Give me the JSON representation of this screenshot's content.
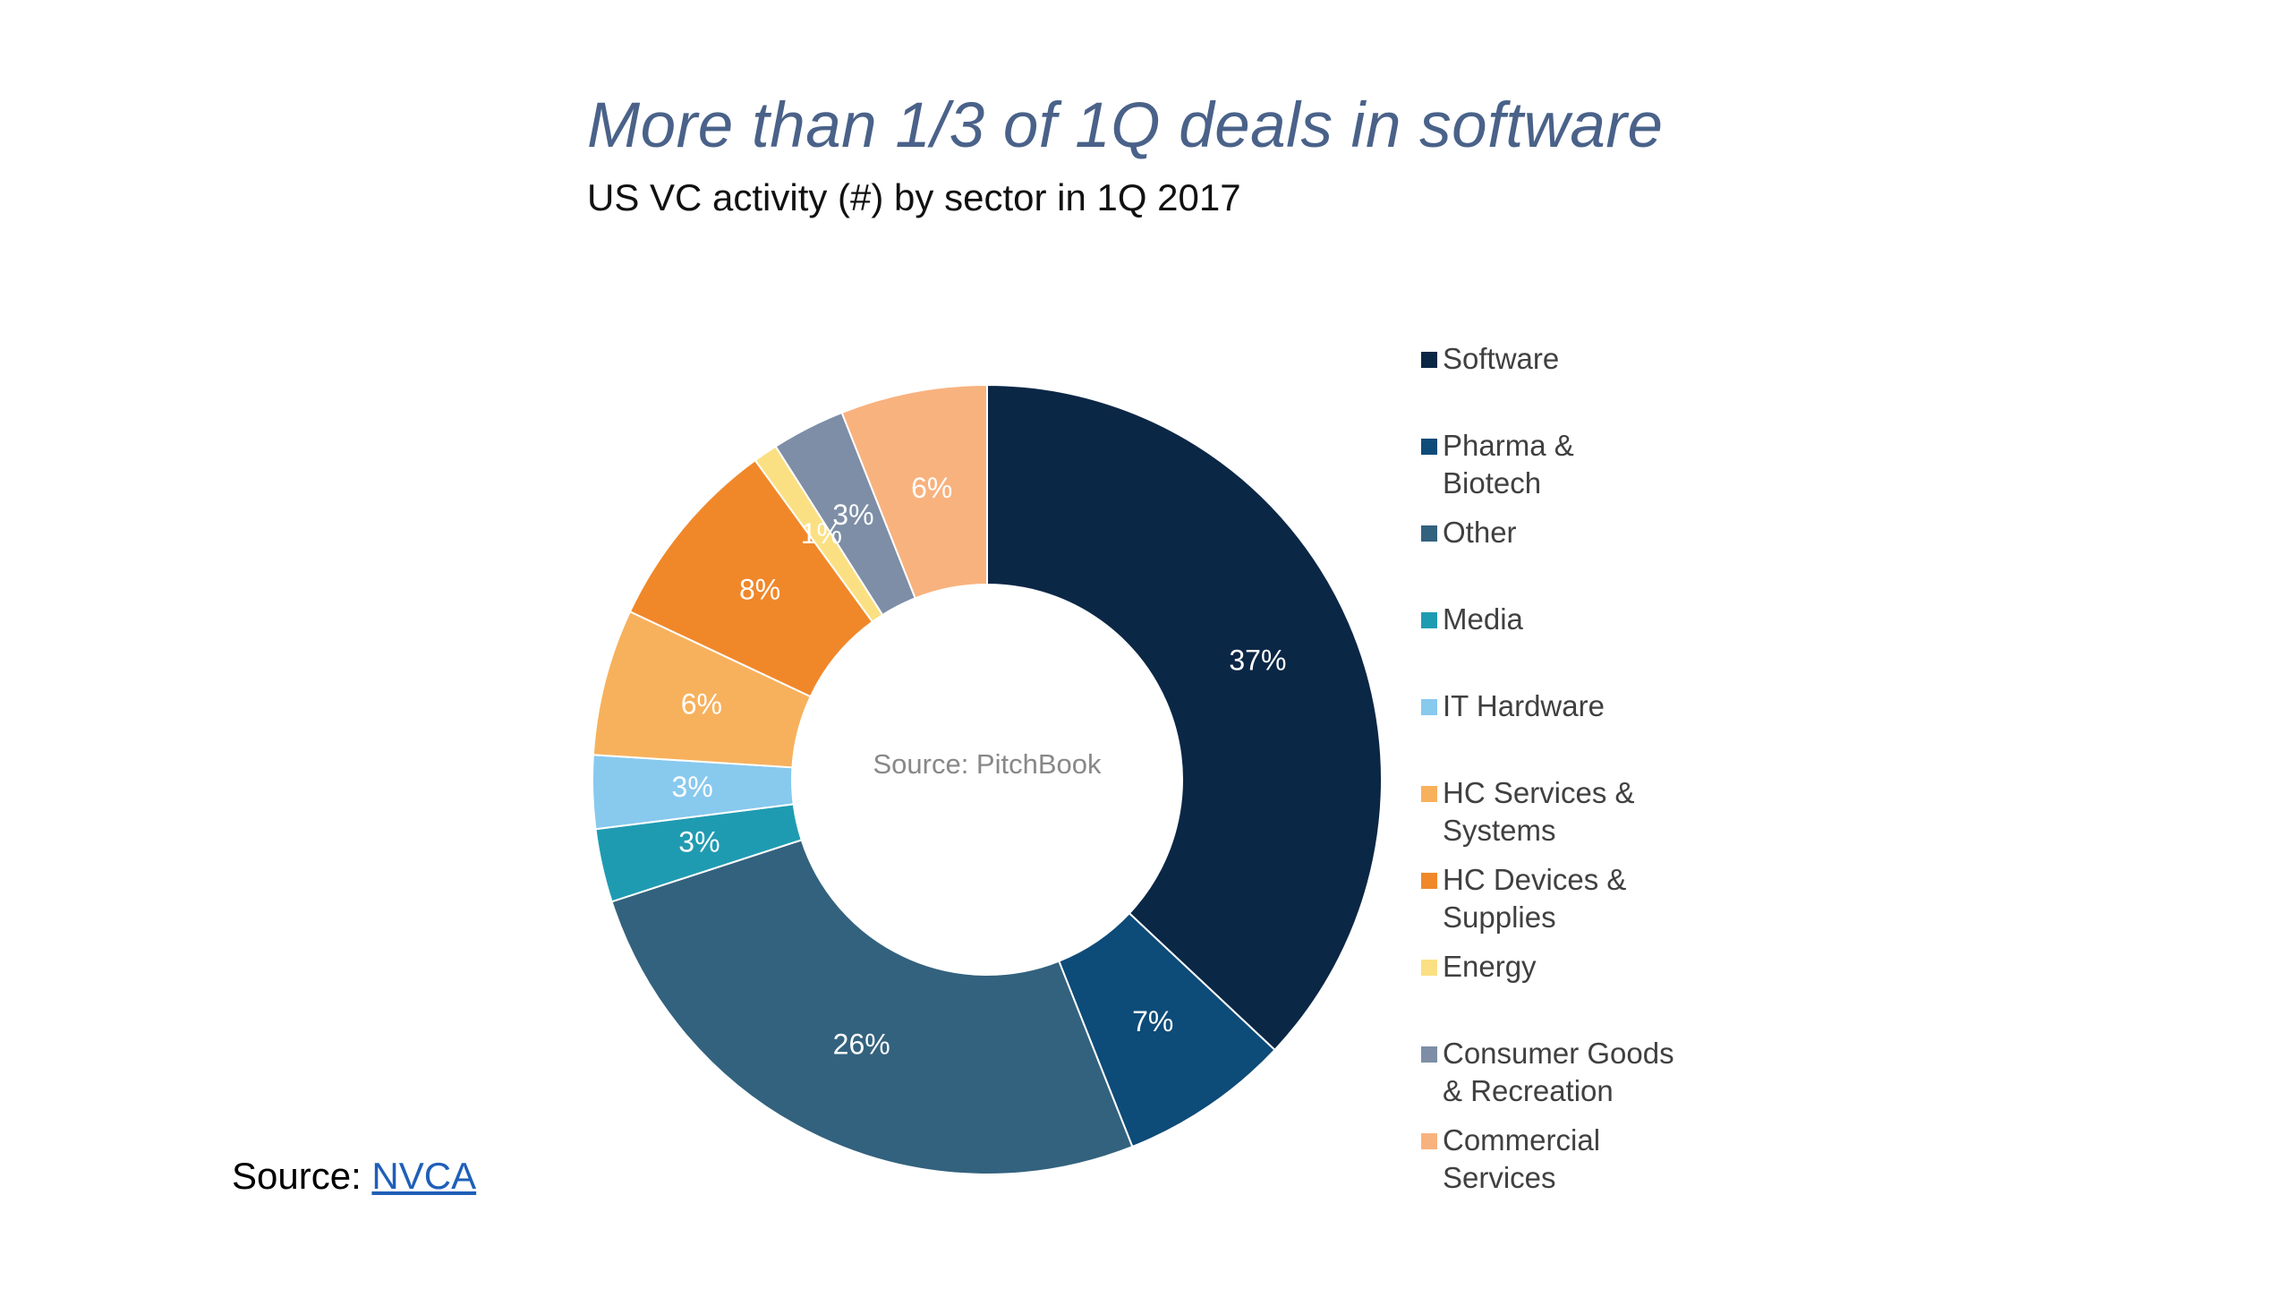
{
  "header": {
    "title": "More than 1/3 of 1Q deals in software",
    "subtitle": "US VC activity (#) by sector in 1Q 2017"
  },
  "footer": {
    "source_prefix": "Source: ",
    "source_link": "NVCA"
  },
  "chart_data": {
    "type": "pie",
    "title": "More than 1/3 of 1Q deals in software",
    "subtitle": "US VC activity (#) by sector in 1Q 2017",
    "center_label": "Source: PitchBook",
    "donut": true,
    "legend_position": "right",
    "slices": [
      {
        "name": "Software",
        "value": 37,
        "label": "37%",
        "color": "#0b2746",
        "label_color": "#ffffff"
      },
      {
        "name": "Pharma & Biotech",
        "value": 7,
        "label": "7%",
        "color": "#0d4b78",
        "label_color": "#ffffff"
      },
      {
        "name": "Other",
        "value": 26,
        "label": "26%",
        "color": "#33627e",
        "label_color": "#ffffff"
      },
      {
        "name": "Media",
        "value": 3,
        "label": "3%",
        "color": "#1f9bb1",
        "label_color": "#ffffff"
      },
      {
        "name": "IT Hardware",
        "value": 3,
        "label": "3%",
        "color": "#88c9ee",
        "label_color": "#ffffff"
      },
      {
        "name": "HC Services & Systems",
        "value": 6,
        "label": "6%",
        "color": "#f7b15c",
        "label_color": "#ffffff"
      },
      {
        "name": "HC Devices & Supplies",
        "value": 8,
        "label": "8%",
        "color": "#f0882a",
        "label_color": "#ffffff"
      },
      {
        "name": "Energy",
        "value": 1,
        "label": "1%",
        "color": "#fbe083",
        "label_color": "#ffffff"
      },
      {
        "name": "Consumer Goods & Recreation",
        "value": 3,
        "label": "3%",
        "color": "#7d8ea6",
        "label_color": "#ffffff"
      },
      {
        "name": "Commercial Services",
        "value": 6,
        "label": "6%",
        "color": "#f8b27e",
        "label_color": "#ffffff"
      }
    ]
  },
  "legend": {
    "items": [
      {
        "label": "Software",
        "color": "#0b2746"
      },
      {
        "label": "Pharma &\nBiotech",
        "color": "#0d4b78"
      },
      {
        "label": "Other",
        "color": "#33627e"
      },
      {
        "label": "Media",
        "color": "#1f9bb1"
      },
      {
        "label": "IT Hardware",
        "color": "#88c9ee"
      },
      {
        "label": "HC Services &\nSystems",
        "color": "#f7b15c"
      },
      {
        "label": "HC Devices &\nSupplies",
        "color": "#f0882a"
      },
      {
        "label": "Energy",
        "color": "#fbe083"
      },
      {
        "label": "Consumer Goods\n& Recreation",
        "color": "#7d8ea6"
      },
      {
        "label": "Commercial\nServices",
        "color": "#f8b27e"
      }
    ]
  }
}
